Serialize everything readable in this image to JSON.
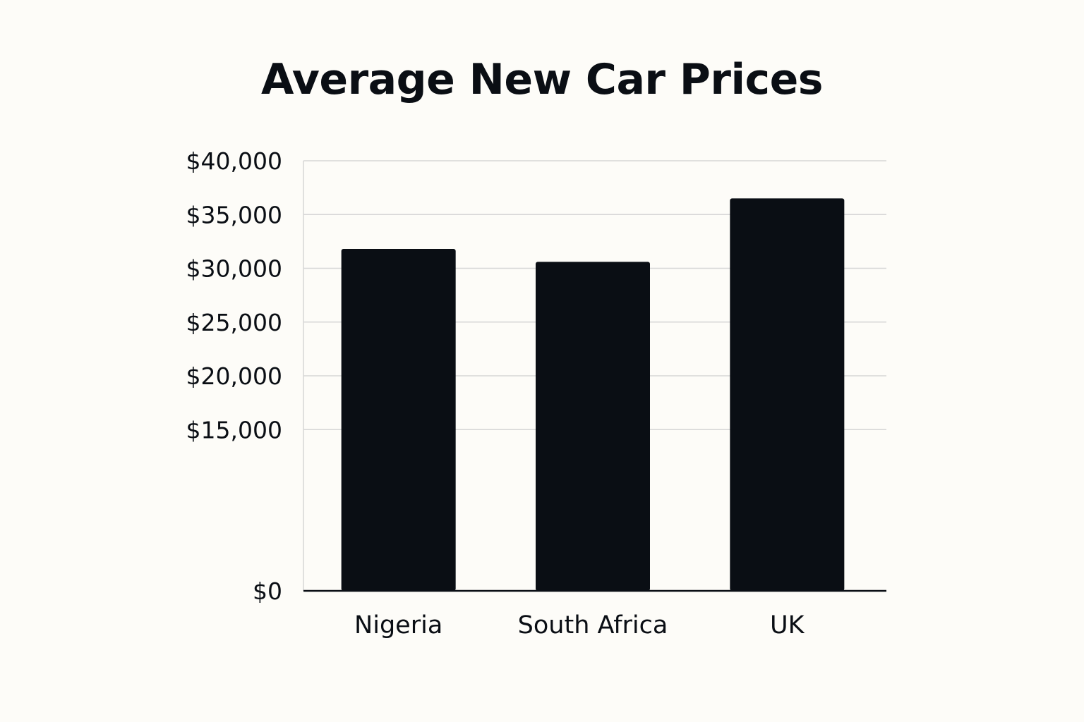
{
  "chart_data": {
    "type": "bar",
    "title": "Average New Car Prices",
    "xlabel": "",
    "ylabel": "",
    "categories": [
      "Nigeria",
      "South Africa",
      "UK"
    ],
    "values": [
      31800,
      30600,
      36500
    ],
    "y_ticks": [
      {
        "value": 0,
        "label": "$0"
      },
      {
        "value": 15000,
        "label": "$15,000"
      },
      {
        "value": 20000,
        "label": "$20,000"
      },
      {
        "value": 25000,
        "label": "$25,000"
      },
      {
        "value": 30000,
        "label": "$30,000"
      },
      {
        "value": 35000,
        "label": "$35,000"
      },
      {
        "value": 40000,
        "label": "$40,000"
      }
    ],
    "ylim": [
      0,
      40000
    ],
    "grid": true,
    "legend": "none",
    "colors": {
      "bar": "#0a0e14",
      "grid": "#d6d6d6",
      "axis": "#0a0e14",
      "background": "#fdfcf8"
    }
  }
}
